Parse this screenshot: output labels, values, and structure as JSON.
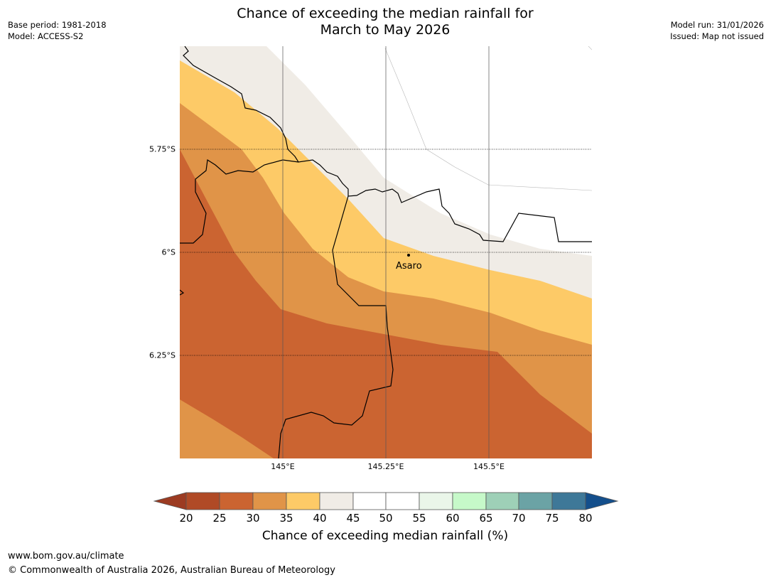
{
  "title_line1": "Chance of exceeding the median rainfall for",
  "title_line2": "March to May 2026",
  "meta_left": {
    "base_period": "Base period: 1981-2018",
    "model": "Model: ACCESS-S2"
  },
  "meta_right": {
    "model_run": "Model run: 31/01/2026",
    "issued": "Issued: Map not issued"
  },
  "map": {
    "lat_labels": [
      "5.75°S",
      "6°S",
      "6.25°S"
    ],
    "lon_labels": [
      "145°E",
      "145.25°E",
      "145.5°E"
    ],
    "place": {
      "name": "Asaro"
    }
  },
  "colors": {
    "c15": "#9c3b22",
    "c20": "#b04a26",
    "c25": "#cb6431",
    "c30": "#e09448",
    "c35": "#fdca67",
    "c40": "#f0ece6",
    "c45": "#ffffff",
    "c50": "#ffffff",
    "c55": "#eaf6e9",
    "c60": "#c6f9c9",
    "c65": "#9ed0b7",
    "c70": "#6ba3a5",
    "c75": "#3e7898",
    "c80": "#144f8c"
  },
  "colorbar": {
    "ticks": [
      "20",
      "25",
      "30",
      "35",
      "40",
      "45",
      "50",
      "55",
      "60",
      "65",
      "70",
      "75",
      "80"
    ],
    "label": "Chance of exceeding median rainfall (%)"
  },
  "footer": {
    "url": "www.bom.gov.au/climate",
    "copyright": "© Commonwealth of Australia 2026, Australian Bureau of Meteorology"
  }
}
